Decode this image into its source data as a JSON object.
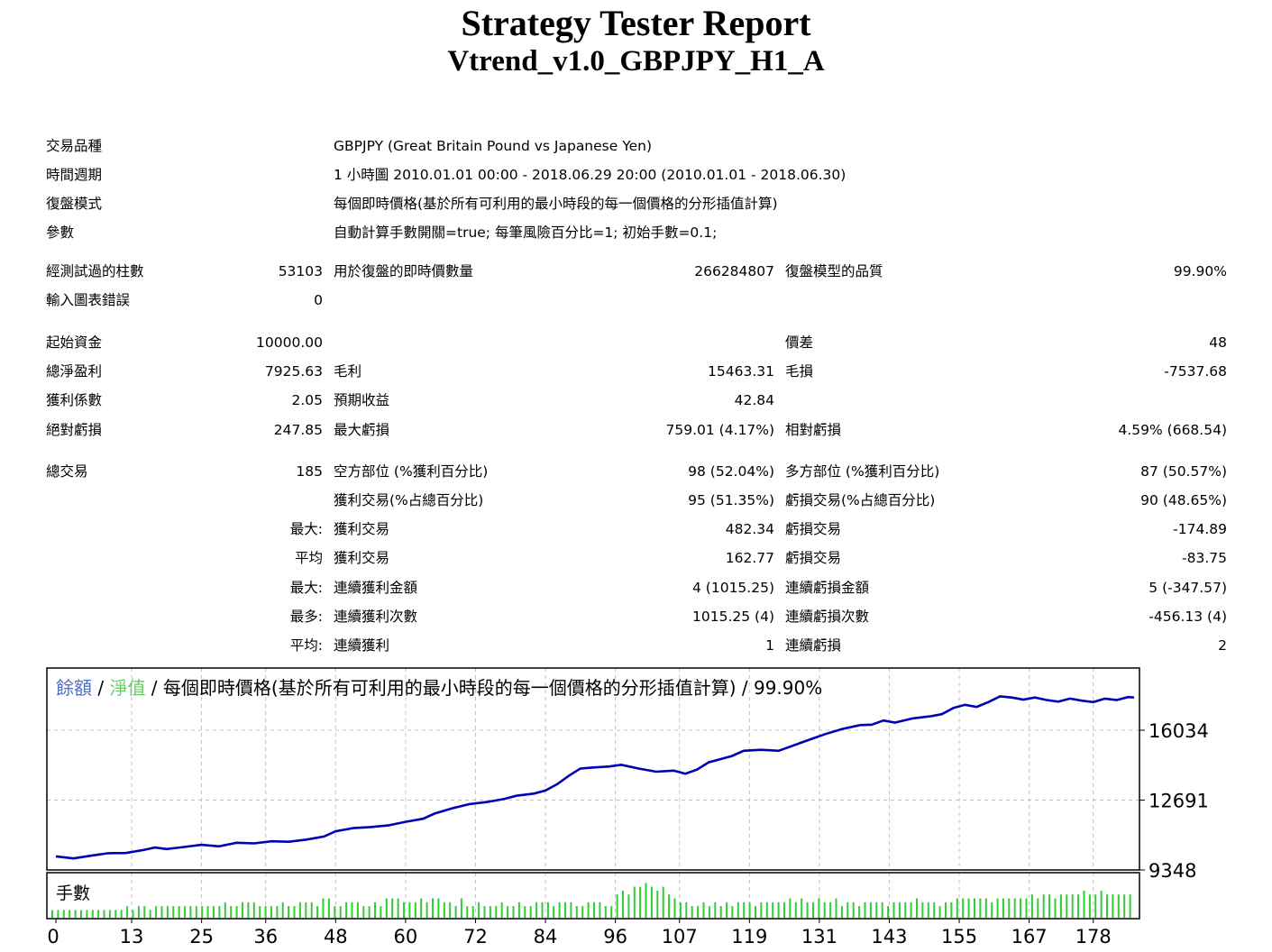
{
  "header": {
    "title": "Strategy Tester Report",
    "subtitle": "Vtrend_v1.0_GBPJPY_H1_A"
  },
  "info": {
    "symbol_label": "交易品種",
    "symbol_value": "GBPJPY (Great Britain Pound vs Japanese Yen)",
    "period_label": "時間週期",
    "period_value": "1 小時圖 2010.01.01 00:00 - 2018.06.29 20:00 (2010.01.01 - 2018.06.30)",
    "model_label": "復盤模式",
    "model_value": "每個即時價格(基於所有可利用的最小時段的每一個價格的分形插值計算)",
    "params_label": "參數",
    "params_value": "自動計算手數開關=true; 每筆風險百分比=1; 初始手數=0.1;"
  },
  "stats": {
    "bars_label": "經測試過的柱數",
    "bars_value": "53103",
    "ticks_label": "用於復盤的即時價數量",
    "ticks_value": "266284807",
    "quality_label": "復盤模型的品質",
    "quality_value": "99.90%",
    "errors_label": "輸入圖表錯誤",
    "errors_value": "0",
    "deposit_label": "起始資金",
    "deposit_value": "10000.00",
    "spread_label": "價差",
    "spread_value": "48",
    "netprofit_label": "總淨盈利",
    "netprofit_value": "7925.63",
    "grossprofit_label": "毛利",
    "grossprofit_value": "15463.31",
    "grossloss_label": "毛損",
    "grossloss_value": "-7537.68",
    "pf_label": "獲利係數",
    "pf_value": "2.05",
    "payoff_label": "預期收益",
    "payoff_value": "42.84",
    "absdd_label": "絕對虧損",
    "absdd_value": "247.85",
    "maxdd_label": "最大虧損",
    "maxdd_value": "759.01 (4.17%)",
    "reldd_label": "相對虧損",
    "reldd_value": "4.59% (668.54)",
    "trades_label": "總交易",
    "trades_value": "185",
    "short_label": "空方部位 (%獲利百分比)",
    "short_value": "98 (52.04%)",
    "long_label": "多方部位 (%獲利百分比)",
    "long_value": "87 (50.57%)",
    "profittrades_label": "獲利交易(%占總百分比)",
    "profittrades_value": "95 (51.35%)",
    "losstrades_label": "虧損交易(%占總百分比)",
    "losstrades_value": "90 (48.65%)",
    "largest_prefix": "最大:",
    "largest_profit_label": "獲利交易",
    "largest_profit_value": "482.34",
    "largest_loss_label": "虧損交易",
    "largest_loss_value": "-174.89",
    "average_prefix": "平均",
    "average_profit_label": "獲利交易",
    "average_profit_value": "162.77",
    "average_loss_label": "虧損交易",
    "average_loss_value": "-83.75",
    "maxcons_prefix": "最大:",
    "maxcons_wins_label": "連續獲利金額",
    "maxcons_wins_value": "4 (1015.25)",
    "maxcons_loss_label": "連續虧損金額",
    "maxcons_loss_value": "5 (-347.57)",
    "maxprofit_prefix": "最多:",
    "maxprofit_wins_label": "連續獲利次數",
    "maxprofit_wins_value": "1015.25 (4)",
    "maxprofit_loss_label": "連續虧損次數",
    "maxprofit_loss_value": "-456.13 (4)",
    "avgcons_prefix": "平均:",
    "avgcons_wins_label": "連續獲利",
    "avgcons_wins_value": "1",
    "avgcons_loss_label": "連續虧損",
    "avgcons_loss_value": "2"
  },
  "colors": {
    "balance": "#0000b4",
    "equity": "#32cd32",
    "volume": "#32cd32",
    "grid": "#c0c0c0"
  },
  "chart_data": {
    "type": "line",
    "legend": {
      "balance": "餘額",
      "sep1": " / ",
      "equity": "淨值",
      "sep2": " / ",
      "rest": "每個即時價格(基於所有可利用的最小時段的每一個價格的分形插值計算) / 99.90%"
    },
    "volume_label": "手數",
    "ylim": [
      9348,
      18500
    ],
    "yticks": [
      9348,
      12691,
      16034
    ],
    "xlim": [
      0,
      185
    ],
    "xticks": [
      0,
      13,
      25,
      36,
      48,
      60,
      72,
      84,
      96,
      107,
      119,
      131,
      143,
      155,
      167,
      178
    ],
    "balance": [
      [
        0,
        10000
      ],
      [
        3,
        9900
      ],
      [
        6,
        10030
      ],
      [
        9,
        10150
      ],
      [
        12,
        10160
      ],
      [
        15,
        10300
      ],
      [
        17,
        10420
      ],
      [
        19,
        10350
      ],
      [
        22,
        10450
      ],
      [
        25,
        10550
      ],
      [
        28,
        10480
      ],
      [
        31,
        10650
      ],
      [
        34,
        10620
      ],
      [
        37,
        10720
      ],
      [
        40,
        10700
      ],
      [
        43,
        10800
      ],
      [
        46,
        10950
      ],
      [
        48,
        11200
      ],
      [
        51,
        11350
      ],
      [
        54,
        11400
      ],
      [
        57,
        11480
      ],
      [
        60,
        11650
      ],
      [
        63,
        11800
      ],
      [
        65,
        12050
      ],
      [
        68,
        12300
      ],
      [
        71,
        12500
      ],
      [
        74,
        12600
      ],
      [
        77,
        12750
      ],
      [
        79,
        12900
      ],
      [
        82,
        13000
      ],
      [
        84,
        13150
      ],
      [
        86,
        13450
      ],
      [
        88,
        13850
      ],
      [
        90,
        14200
      ],
      [
        92,
        14250
      ],
      [
        95,
        14300
      ],
      [
        97,
        14380
      ],
      [
        100,
        14200
      ],
      [
        103,
        14050
      ],
      [
        106,
        14100
      ],
      [
        108,
        13950
      ],
      [
        110,
        14150
      ],
      [
        112,
        14500
      ],
      [
        114,
        14650
      ],
      [
        116,
        14800
      ],
      [
        118,
        15050
      ],
      [
        121,
        15100
      ],
      [
        124,
        15050
      ],
      [
        126,
        15250
      ],
      [
        128,
        15450
      ],
      [
        130,
        15650
      ],
      [
        132,
        15850
      ],
      [
        135,
        16100
      ],
      [
        138,
        16280
      ],
      [
        140,
        16300
      ],
      [
        142,
        16500
      ],
      [
        144,
        16400
      ],
      [
        147,
        16600
      ],
      [
        150,
        16700
      ],
      [
        152,
        16800
      ],
      [
        154,
        17100
      ],
      [
        156,
        17250
      ],
      [
        158,
        17150
      ],
      [
        160,
        17380
      ],
      [
        162,
        17650
      ],
      [
        164,
        17600
      ],
      [
        166,
        17500
      ],
      [
        168,
        17600
      ],
      [
        170,
        17480
      ],
      [
        172,
        17400
      ],
      [
        174,
        17550
      ],
      [
        176,
        17450
      ],
      [
        178,
        17380
      ],
      [
        180,
        17550
      ],
      [
        182,
        17480
      ],
      [
        184,
        17620
      ],
      [
        185,
        17600
      ]
    ],
    "volume": [
      2,
      2,
      2,
      2,
      2,
      2,
      2,
      2,
      2,
      2,
      2,
      2,
      2,
      3,
      2,
      3,
      3,
      2,
      3,
      3,
      3,
      3,
      3,
      3,
      3,
      3,
      3,
      3,
      3,
      3,
      4,
      3,
      3,
      4,
      4,
      4,
      3,
      3,
      3,
      3,
      4,
      3,
      3,
      4,
      4,
      4,
      3,
      5,
      5,
      3,
      3,
      4,
      4,
      4,
      3,
      3,
      4,
      3,
      5,
      5,
      5,
      4,
      4,
      4,
      5,
      4,
      5,
      5,
      4,
      4,
      3,
      5,
      3,
      3,
      4,
      3,
      3,
      3,
      4,
      3,
      3,
      4,
      3,
      3,
      4,
      4,
      4,
      3,
      4,
      4,
      4,
      3,
      3,
      4,
      4,
      4,
      3,
      3,
      6,
      7,
      6,
      8,
      8,
      9,
      8,
      7,
      8,
      6,
      5,
      4,
      4,
      3,
      3,
      4,
      3,
      4,
      3,
      4,
      3,
      4,
      4,
      4,
      3,
      4,
      4,
      4,
      4,
      4,
      5,
      4,
      5,
      4,
      4,
      5,
      4,
      4,
      5,
      3,
      4,
      4,
      3,
      4,
      4,
      4,
      4,
      3,
      4,
      4,
      4,
      4,
      5,
      4,
      4,
      4,
      3,
      4,
      4,
      5,
      5,
      5,
      5,
      5,
      5,
      4,
      5,
      5,
      5,
      5,
      5,
      5,
      6,
      5,
      6,
      6,
      5,
      6,
      6,
      6,
      6,
      7,
      6,
      6,
      7,
      6,
      6,
      6,
      6,
      6
    ]
  }
}
